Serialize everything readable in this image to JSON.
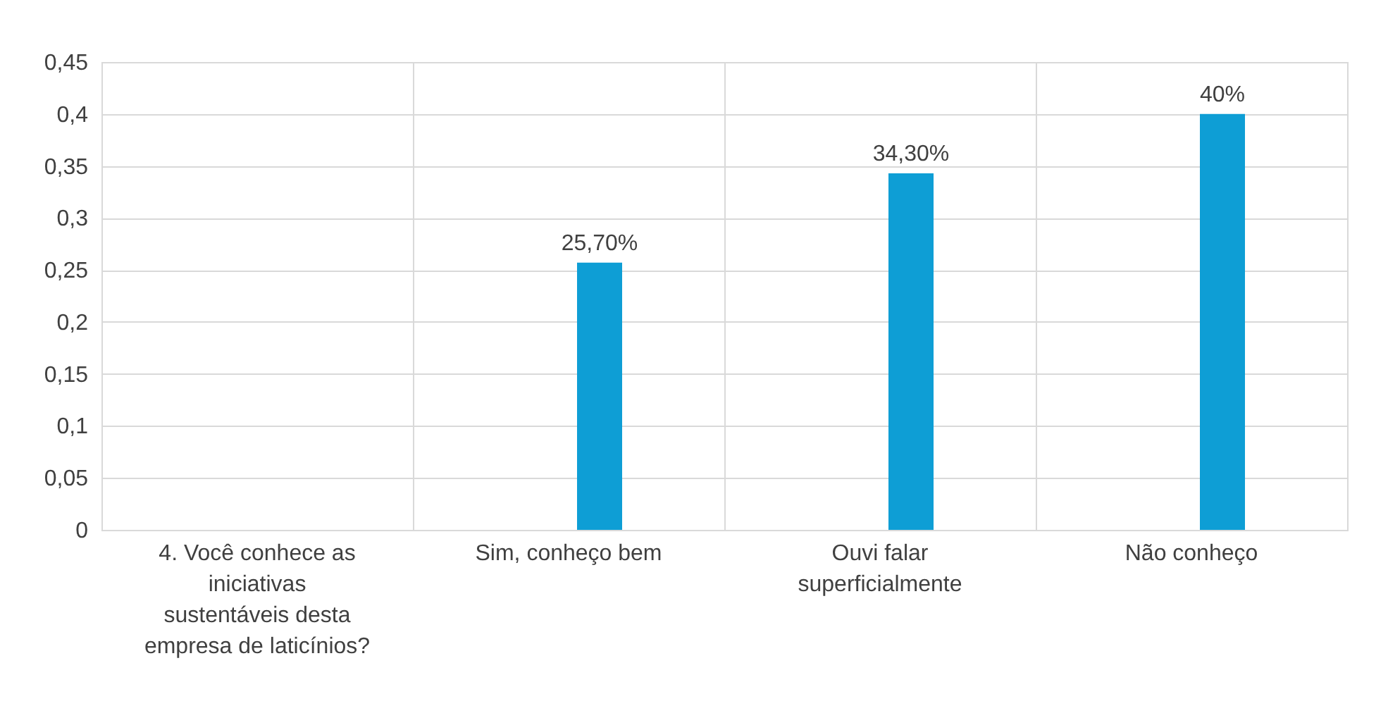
{
  "chart_data": {
    "type": "bar",
    "categories": [
      "4. Você conhece as iniciativas sustentáveis desta empresa de laticínios?",
      "Sim, conheço bem",
      "Ouvi falar superficialmente",
      "Não conheço"
    ],
    "values": [
      null,
      0.257,
      0.343,
      0.4
    ],
    "value_labels": [
      null,
      "25,70%",
      "34,30%",
      "40%"
    ],
    "color": "#0e9ed5",
    "ylim": [
      0,
      0.45
    ],
    "yticks": [
      0,
      {
        "value": 0.05,
        "label": "0,05"
      },
      {
        "value": 0.1,
        "label": "0,1"
      },
      {
        "value": 0.15,
        "label": "0,15"
      },
      {
        "value": 0.2,
        "label": "0,2"
      },
      {
        "value": 0.25,
        "label": "0,25"
      },
      {
        "value": 0.3,
        "label": "0,3"
      },
      {
        "value": 0.35,
        "label": "0,35"
      },
      {
        "value": 0.4,
        "label": "0,4"
      },
      {
        "value": 0.45,
        "label": "0,45"
      }
    ],
    "grid": true
  }
}
